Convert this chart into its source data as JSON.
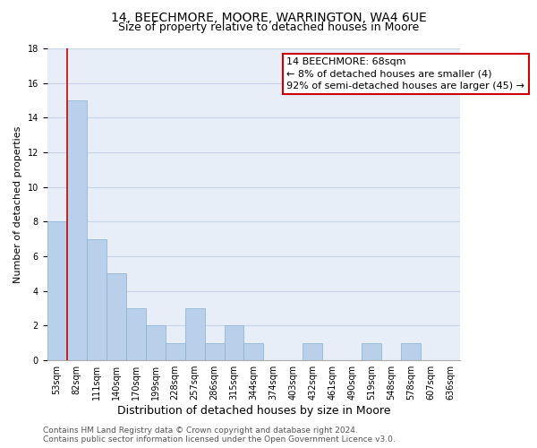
{
  "title": "14, BEECHMORE, MOORE, WARRINGTON, WA4 6UE",
  "subtitle": "Size of property relative to detached houses in Moore",
  "xlabel": "Distribution of detached houses by size in Moore",
  "ylabel": "Number of detached properties",
  "bin_labels": [
    "53sqm",
    "82sqm",
    "111sqm",
    "140sqm",
    "170sqm",
    "199sqm",
    "228sqm",
    "257sqm",
    "286sqm",
    "315sqm",
    "344sqm",
    "374sqm",
    "403sqm",
    "432sqm",
    "461sqm",
    "490sqm",
    "519sqm",
    "548sqm",
    "578sqm",
    "607sqm",
    "636sqm"
  ],
  "bar_values": [
    8,
    15,
    7,
    5,
    3,
    2,
    1,
    3,
    1,
    2,
    1,
    0,
    0,
    1,
    0,
    0,
    1,
    0,
    1,
    0,
    0
  ],
  "bar_color": "#b8d0ea",
  "bar_edge_color": "#8ab0d0",
  "grid_color": "#c8d4e8",
  "background_color": "#e8eef8",
  "annotation_line1": "14 BEECHMORE: 68sqm",
  "annotation_line2": "← 8% of detached houses are smaller (4)",
  "annotation_line3": "92% of semi-detached houses are larger (45) →",
  "annotation_box_edge_color": "#cc0000",
  "ylim": [
    0,
    18
  ],
  "yticks": [
    0,
    2,
    4,
    6,
    8,
    10,
    12,
    14,
    16,
    18
  ],
  "footer_text": "Contains HM Land Registry data © Crown copyright and database right 2024.\nContains public sector information licensed under the Open Government Licence v3.0.",
  "title_fontsize": 10,
  "subtitle_fontsize": 9,
  "xlabel_fontsize": 9,
  "ylabel_fontsize": 8,
  "tick_fontsize": 7,
  "annotation_fontsize": 8,
  "footer_fontsize": 6.5
}
